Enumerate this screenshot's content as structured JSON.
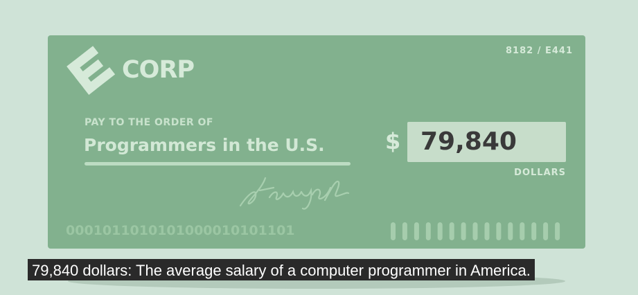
{
  "check": {
    "logo_text": "CORP",
    "check_number": "8182 / E441",
    "pay_to_label": "PAY TO THE ORDER OF",
    "payee": "Programmers in the U.S.",
    "currency_symbol": "$",
    "amount": "79,840",
    "amount_unit": "DOLLARS",
    "micr_line": "0001011010101000010101101",
    "barcode_bars": 15,
    "signature_text": "steven jobs"
  },
  "caption": {
    "text": "79,840 dollars: The average salary of a computer programmer in America."
  },
  "colors": {
    "background": "#cfe3d7",
    "check": "#82b18e",
    "amount_box": "#c7ddca",
    "caption_bg": "#2a2a2a"
  },
  "icons": {
    "logo": "ecorp-e-logo-icon",
    "signature": "signature-scribble-icon"
  }
}
